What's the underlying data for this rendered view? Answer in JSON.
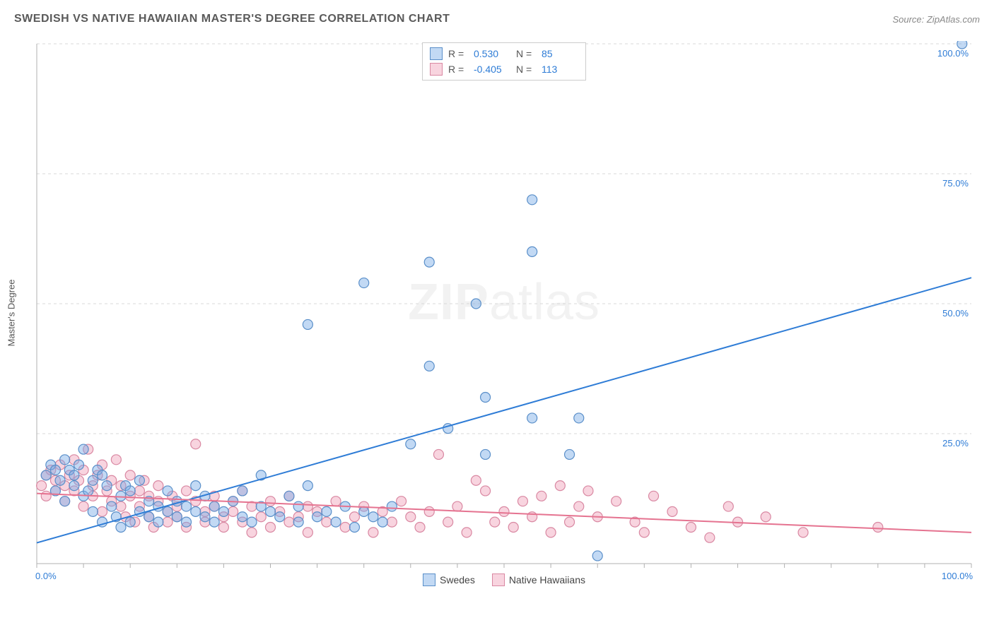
{
  "title": "SWEDISH VS NATIVE HAWAIIAN MASTER'S DEGREE CORRELATION CHART",
  "source": "Source: ZipAtlas.com",
  "y_axis_label": "Master's Degree",
  "watermark": {
    "bold": "ZIP",
    "light": "atlas"
  },
  "chart": {
    "type": "scatter",
    "xlim": [
      0,
      100
    ],
    "ylim": [
      0,
      100
    ],
    "y_ticks": [
      0,
      25,
      50,
      75,
      100
    ],
    "y_tick_labels": [
      "0.0%",
      "25.0%",
      "50.0%",
      "75.0%",
      "100.0%"
    ],
    "x_ticks": [
      0,
      100
    ],
    "x_tick_labels": [
      "0.0%",
      "100.0%"
    ],
    "grid_color": "#d8d8d8",
    "grid_dash": "4,4",
    "axis_color": "#b0b0b0",
    "tick_label_color": "#2e7cd6",
    "background_color": "#ffffff",
    "marker_radius": 7,
    "marker_stroke_width": 1.2,
    "line_width": 2,
    "series": [
      {
        "name": "Swedes",
        "fill": "rgba(120,170,230,0.45)",
        "stroke": "#5a8fc9",
        "line_color": "#2e7cd6",
        "R": "0.530",
        "N": "85",
        "trend": {
          "x1": 0,
          "y1": 4,
          "x2": 100,
          "y2": 55
        },
        "points": [
          [
            1,
            17
          ],
          [
            1.5,
            19
          ],
          [
            2,
            18
          ],
          [
            2,
            14
          ],
          [
            2.5,
            16
          ],
          [
            3,
            20
          ],
          [
            3,
            12
          ],
          [
            3.5,
            18
          ],
          [
            4,
            15
          ],
          [
            4,
            17
          ],
          [
            4.5,
            19
          ],
          [
            5,
            22
          ],
          [
            5,
            13
          ],
          [
            5.5,
            14
          ],
          [
            6,
            16
          ],
          [
            6,
            10
          ],
          [
            6.5,
            18
          ],
          [
            7,
            8
          ],
          [
            7,
            17
          ],
          [
            7.5,
            15
          ],
          [
            8,
            11
          ],
          [
            8.5,
            9
          ],
          [
            9,
            13
          ],
          [
            9,
            7
          ],
          [
            9.5,
            15
          ],
          [
            10,
            8
          ],
          [
            10,
            14
          ],
          [
            11,
            10
          ],
          [
            11,
            16
          ],
          [
            12,
            9
          ],
          [
            12,
            12
          ],
          [
            13,
            11
          ],
          [
            13,
            8
          ],
          [
            14,
            10
          ],
          [
            14,
            14
          ],
          [
            15,
            9
          ],
          [
            15,
            12
          ],
          [
            16,
            8
          ],
          [
            16,
            11
          ],
          [
            17,
            10
          ],
          [
            17,
            15
          ],
          [
            18,
            9
          ],
          [
            18,
            13
          ],
          [
            19,
            11
          ],
          [
            19,
            8
          ],
          [
            20,
            10
          ],
          [
            21,
            12
          ],
          [
            22,
            9
          ],
          [
            22,
            14
          ],
          [
            23,
            8
          ],
          [
            24,
            11
          ],
          [
            24,
            17
          ],
          [
            25,
            10
          ],
          [
            26,
            9
          ],
          [
            27,
            13
          ],
          [
            28,
            8
          ],
          [
            28,
            11
          ],
          [
            29,
            15
          ],
          [
            30,
            9
          ],
          [
            31,
            10
          ],
          [
            32,
            8
          ],
          [
            33,
            11
          ],
          [
            34,
            7
          ],
          [
            35,
            10
          ],
          [
            36,
            9
          ],
          [
            37,
            8
          ],
          [
            38,
            11
          ],
          [
            29,
            46
          ],
          [
            35,
            54
          ],
          [
            40,
            23
          ],
          [
            42,
            38
          ],
          [
            42,
            58
          ],
          [
            44,
            26
          ],
          [
            47,
            50
          ],
          [
            48,
            21
          ],
          [
            48,
            32
          ],
          [
            53,
            28
          ],
          [
            53,
            60
          ],
          [
            53,
            70
          ],
          [
            57,
            21
          ],
          [
            58,
            28
          ],
          [
            60,
            1.5
          ],
          [
            99,
            100
          ]
        ]
      },
      {
        "name": "Native Hawaiians",
        "fill": "rgba(240,160,185,0.45)",
        "stroke": "#d988a2",
        "line_color": "#e57390",
        "R": "-0.405",
        "N": "113",
        "trend": {
          "x1": 0,
          "y1": 13.5,
          "x2": 100,
          "y2": 6
        },
        "points": [
          [
            0.5,
            15
          ],
          [
            1,
            17
          ],
          [
            1,
            13
          ],
          [
            1.5,
            18
          ],
          [
            2,
            14
          ],
          [
            2,
            16
          ],
          [
            2.5,
            19
          ],
          [
            3,
            15
          ],
          [
            3,
            12
          ],
          [
            3.5,
            17
          ],
          [
            4,
            20
          ],
          [
            4,
            14
          ],
          [
            4.5,
            16
          ],
          [
            5,
            11
          ],
          [
            5,
            18
          ],
          [
            5.5,
            22
          ],
          [
            6,
            15
          ],
          [
            6,
            13
          ],
          [
            6.5,
            17
          ],
          [
            7,
            10
          ],
          [
            7,
            19
          ],
          [
            7.5,
            14
          ],
          [
            8,
            16
          ],
          [
            8,
            12
          ],
          [
            8.5,
            20
          ],
          [
            9,
            11
          ],
          [
            9,
            15
          ],
          [
            9.5,
            9
          ],
          [
            10,
            13
          ],
          [
            10,
            17
          ],
          [
            10.5,
            8
          ],
          [
            11,
            14
          ],
          [
            11,
            11
          ],
          [
            11.5,
            16
          ],
          [
            12,
            9
          ],
          [
            12,
            13
          ],
          [
            12.5,
            7
          ],
          [
            13,
            12
          ],
          [
            13,
            15
          ],
          [
            14,
            10
          ],
          [
            14,
            8
          ],
          [
            14.5,
            13
          ],
          [
            15,
            11
          ],
          [
            15,
            9
          ],
          [
            16,
            14
          ],
          [
            16,
            7
          ],
          [
            17,
            12
          ],
          [
            17,
            23
          ],
          [
            18,
            10
          ],
          [
            18,
            8
          ],
          [
            19,
            11
          ],
          [
            19,
            13
          ],
          [
            20,
            9
          ],
          [
            20,
            7
          ],
          [
            21,
            12
          ],
          [
            21,
            10
          ],
          [
            22,
            8
          ],
          [
            22,
            14
          ],
          [
            23,
            11
          ],
          [
            23,
            6
          ],
          [
            24,
            9
          ],
          [
            25,
            12
          ],
          [
            25,
            7
          ],
          [
            26,
            10
          ],
          [
            27,
            8
          ],
          [
            27,
            13
          ],
          [
            28,
            9
          ],
          [
            29,
            11
          ],
          [
            29,
            6
          ],
          [
            30,
            10
          ],
          [
            31,
            8
          ],
          [
            32,
            12
          ],
          [
            33,
            7
          ],
          [
            34,
            9
          ],
          [
            35,
            11
          ],
          [
            36,
            6
          ],
          [
            37,
            10
          ],
          [
            38,
            8
          ],
          [
            39,
            12
          ],
          [
            40,
            9
          ],
          [
            41,
            7
          ],
          [
            42,
            10
          ],
          [
            43,
            21
          ],
          [
            44,
            8
          ],
          [
            45,
            11
          ],
          [
            46,
            6
          ],
          [
            47,
            16
          ],
          [
            48,
            14
          ],
          [
            49,
            8
          ],
          [
            50,
            10
          ],
          [
            51,
            7
          ],
          [
            52,
            12
          ],
          [
            53,
            9
          ],
          [
            54,
            13
          ],
          [
            55,
            6
          ],
          [
            56,
            15
          ],
          [
            57,
            8
          ],
          [
            58,
            11
          ],
          [
            59,
            14
          ],
          [
            60,
            9
          ],
          [
            62,
            12
          ],
          [
            64,
            8
          ],
          [
            65,
            6
          ],
          [
            66,
            13
          ],
          [
            68,
            10
          ],
          [
            70,
            7
          ],
          [
            72,
            5
          ],
          [
            74,
            11
          ],
          [
            75,
            8
          ],
          [
            78,
            9
          ],
          [
            82,
            6
          ],
          [
            90,
            7
          ]
        ]
      }
    ],
    "legend_top": {
      "rows": [
        {
          "swatch_series": 0,
          "r_label": "R =",
          "n_label": "N ="
        },
        {
          "swatch_series": 1,
          "r_label": "R =",
          "n_label": "N ="
        }
      ]
    },
    "legend_bottom": {
      "items": [
        {
          "swatch_series": 0,
          "label": "Swedes"
        },
        {
          "swatch_series": 1,
          "label": "Native Hawaiians"
        }
      ]
    }
  }
}
